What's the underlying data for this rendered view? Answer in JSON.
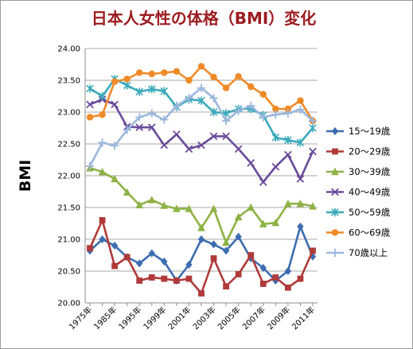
{
  "chart_data": {
    "type": "line",
    "title": "日本人女性の体格（BMI）変化",
    "title_color": "#9b1c20",
    "ylabel": "BMI",
    "xlabel": "",
    "ylim": [
      20.0,
      24.0
    ],
    "ytick_labels": [
      "24.00",
      "23.50",
      "23.00",
      "22.50",
      "22.00",
      "21.50",
      "21.00",
      "20.50",
      "20.00"
    ],
    "grid": true,
    "legend_position": "right",
    "x": [
      "1975年",
      "1980年",
      "1985年",
      "1990年",
      "1995年",
      "1997年",
      "1999年",
      "2000年",
      "2001年",
      "2002年",
      "2003年",
      "2004年",
      "2005年",
      "2006年",
      "2007年",
      "2008年",
      "2009年",
      "2010年",
      "2011年"
    ],
    "x_tick_labels": [
      "1975年",
      "",
      "1985年",
      "",
      "1995年",
      "",
      "1999年",
      "",
      "2001年",
      "",
      "2003年",
      "",
      "2005年",
      "",
      "2007年",
      "",
      "2009年",
      "",
      "2011年"
    ],
    "series": [
      {
        "name": "15～19歳",
        "color": "#3d6db0",
        "marker": "diamond",
        "values": [
          20.82,
          21.0,
          20.9,
          20.72,
          20.62,
          20.78,
          20.65,
          20.35,
          20.6,
          21.0,
          20.92,
          20.82,
          21.04,
          20.7,
          20.55,
          20.35,
          20.5,
          21.2,
          20.73
        ]
      },
      {
        "name": "20～29歳",
        "color": "#b03a3a",
        "marker": "square",
        "values": [
          20.86,
          21.3,
          20.58,
          20.72,
          20.35,
          20.4,
          20.38,
          20.35,
          20.38,
          20.15,
          20.7,
          20.26,
          20.45,
          20.75,
          20.3,
          20.4,
          20.24,
          20.38,
          20.82
        ]
      },
      {
        "name": "30～39歳",
        "color": "#8db245",
        "marker": "triangle",
        "values": [
          22.12,
          22.06,
          21.95,
          21.74,
          21.54,
          21.62,
          21.53,
          21.48,
          21.48,
          21.18,
          21.48,
          20.95,
          21.35,
          21.5,
          21.24,
          21.26,
          21.56,
          21.56,
          21.52
        ]
      },
      {
        "name": "40～49歳",
        "color": "#6a4b9a",
        "marker": "x",
        "values": [
          23.12,
          23.2,
          23.12,
          22.77,
          22.76,
          22.76,
          22.48,
          22.65,
          22.42,
          22.48,
          22.62,
          22.62,
          22.42,
          22.2,
          21.9,
          22.14,
          22.33,
          21.95,
          22.38
        ]
      },
      {
        "name": "50～59歳",
        "color": "#3aa9bb",
        "marker": "asterisk",
        "values": [
          23.37,
          23.25,
          23.52,
          23.42,
          23.32,
          23.36,
          23.33,
          23.08,
          23.2,
          23.18,
          23.0,
          22.98,
          23.05,
          23.05,
          22.95,
          22.6,
          22.56,
          22.52,
          22.75
        ]
      },
      {
        "name": "60～69歳",
        "color": "#ef8a28",
        "marker": "circle",
        "values": [
          22.92,
          22.96,
          23.48,
          23.52,
          23.62,
          23.6,
          23.62,
          23.64,
          23.5,
          23.72,
          23.55,
          23.38,
          23.56,
          23.4,
          23.28,
          23.05,
          23.05,
          23.18,
          22.86
        ]
      },
      {
        "name": "70歳以上",
        "color": "#9bb7dc",
        "marker": "plus",
        "values": [
          22.15,
          22.52,
          22.47,
          22.72,
          22.92,
          22.98,
          22.88,
          23.1,
          23.22,
          23.38,
          23.22,
          22.86,
          23.02,
          23.1,
          22.92,
          22.96,
          22.98,
          23.04,
          22.86
        ]
      }
    ]
  }
}
